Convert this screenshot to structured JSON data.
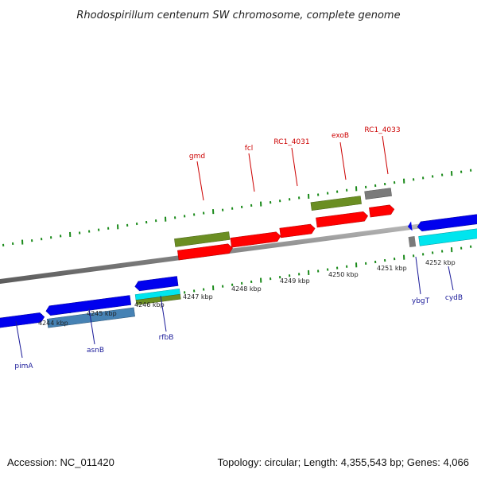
{
  "title": "Rhodospirillum centenum SW chromosome, complete genome",
  "footer": {
    "accession": "Accession: NC_011420",
    "topology": "Topology: circular; Length: 4,355,543 bp; Genes: 4,066"
  },
  "ruler_labels": [
    "4244 kbp",
    "4245 kbp",
    "4246 kbp",
    "4247 kbp",
    "4248 kbp",
    "4249 kbp",
    "4250 kbp",
    "4251 kbp",
    "4252 kbp"
  ],
  "genes_top": [
    "gmd",
    "fcl",
    "RC1_4031",
    "exoB",
    "RC1_4033"
  ],
  "genes_bottom": [
    "pimA",
    "asnB",
    "rfbB",
    "ybgT",
    "cydB"
  ],
  "colors": {
    "backbone": "#8a8a8a",
    "tick": "#1a8a1a",
    "red_feature": "#ff0000",
    "olive_feature": "#6b8e23",
    "blue_feature": "#0000ee",
    "steel_feature": "#4682b4",
    "cyan_feature": "#00e5ee",
    "gray_feature": "#7a7a7a",
    "top_label": "#cc0000",
    "bottom_label": "#1a1a99"
  }
}
